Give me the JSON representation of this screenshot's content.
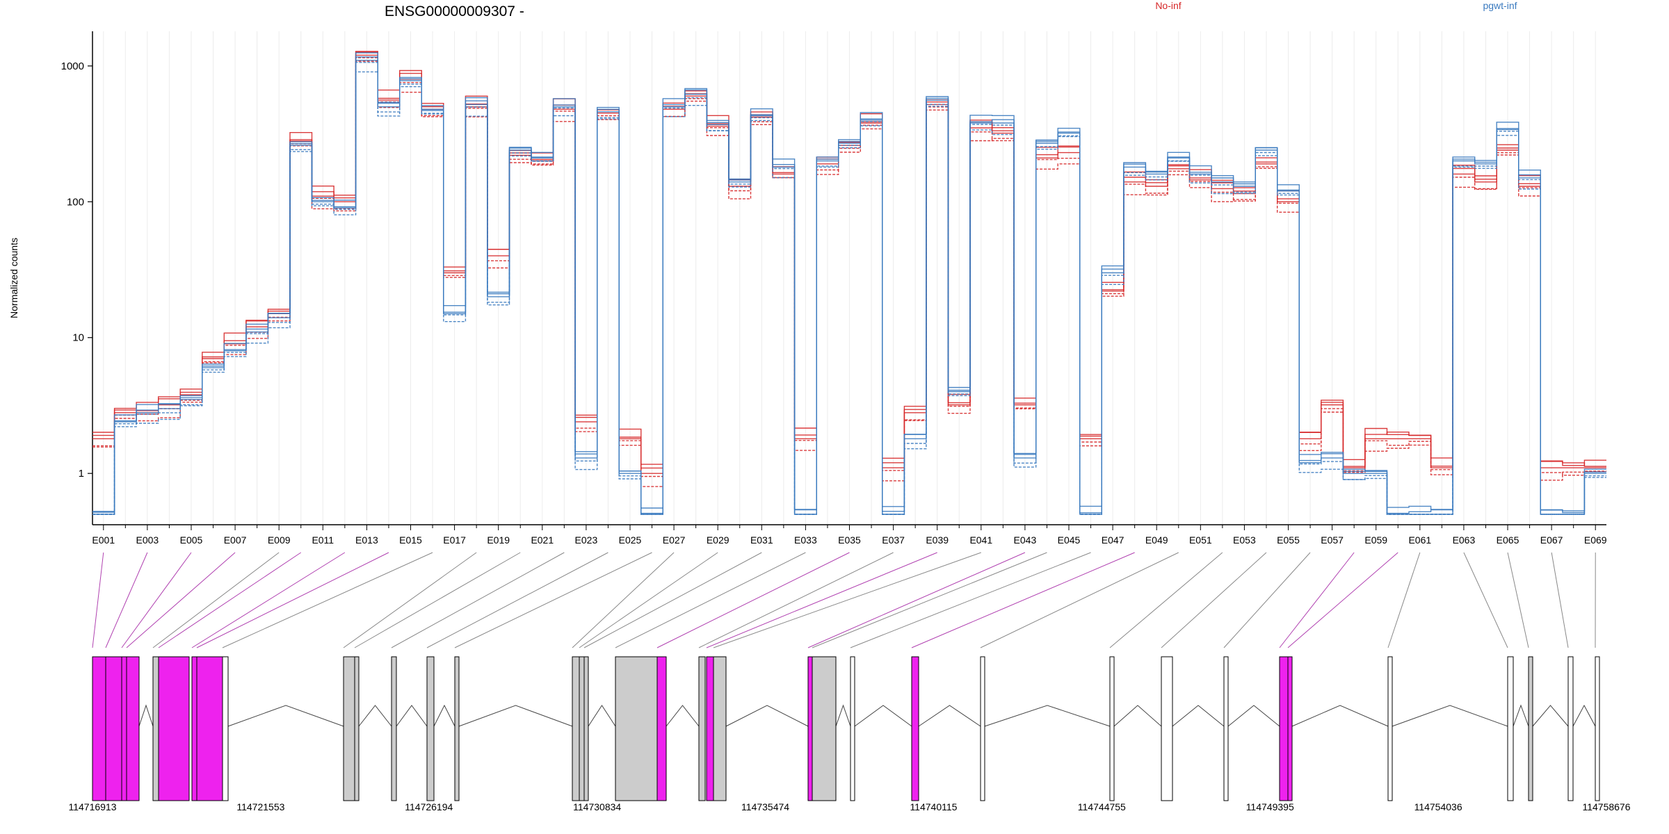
{
  "chart_data": {
    "type": "line",
    "title": "ENSG00000009307 -",
    "ylabel": "Normalized counts",
    "yscale": "log",
    "yticks": [
      1,
      10,
      100,
      1000
    ],
    "ytick_labels": [
      "1",
      "10",
      "100",
      "1000"
    ],
    "ylim": [
      0.5,
      1800
    ],
    "legend": [
      {
        "name": "No-inf",
        "color": "#d62728"
      },
      {
        "name": "pgwt-inf",
        "color": "#3a7abf"
      }
    ],
    "exon_labels": [
      "E001",
      "E003",
      "E005",
      "E007",
      "E009",
      "E011",
      "E013",
      "E015",
      "E017",
      "E019",
      "E021",
      "E023",
      "E025",
      "E027",
      "E029",
      "E031",
      "E033",
      "E035",
      "E037",
      "E039",
      "E041",
      "E043",
      "E045",
      "E047",
      "E049",
      "E051",
      "E053",
      "E055",
      "E057",
      "E059",
      "E061",
      "E063",
      "E065",
      "E067",
      "E069"
    ],
    "exon_count": 69,
    "red_reference": [
      1.8,
      2.8,
      2.8,
      3.2,
      3.8,
      7,
      9,
      12,
      15,
      280,
      110,
      100,
      1200,
      560,
      800,
      480,
      30,
      500,
      40,
      220,
      200,
      480,
      2.4,
      450,
      1.8,
      1,
      480,
      600,
      360,
      130,
      420,
      160,
      1.8,
      190,
      260,
      380,
      1.1,
      2.8,
      520,
      3.2,
      350,
      320,
      3.2,
      210,
      230,
      1.8,
      22,
      140,
      130,
      175,
      145,
      125,
      115,
      190,
      100,
      1.8,
      3.2,
      1.1,
      1.8,
      1.8,
      1.8,
      1.1,
      160,
      140,
      240,
      130,
      1.1,
      1.1,
      1.1
    ],
    "blue_reference": [
      0.5,
      2.4,
      2.8,
      3.0,
      3.5,
      6,
      8,
      11,
      14,
      260,
      100,
      90,
      1100,
      500,
      780,
      470,
      15,
      520,
      20,
      240,
      210,
      500,
      1.3,
      460,
      1,
      0.5,
      500,
      620,
      370,
      140,
      430,
      180,
      0.5,
      200,
      270,
      400,
      0.5,
      1.8,
      560,
      4.0,
      380,
      380,
      1.3,
      270,
      320,
      0.5,
      30,
      180,
      160,
      210,
      160,
      140,
      130,
      240,
      120,
      1.2,
      1.3,
      1.0,
      1.0,
      0.5,
      0.5,
      0.5,
      200,
      190,
      340,
      150,
      0.5,
      0.5,
      1.0
    ],
    "gene_coordinates": [
      "114716913",
      "114721553",
      "114726194",
      "114730834",
      "114735474",
      "114740115",
      "114744755",
      "114749395",
      "114754036",
      "114758676"
    ],
    "annotation_colors": {
      "highlight": "#ee22ee",
      "shaded": "#cccccc",
      "unshaded": "#ffffff"
    }
  }
}
